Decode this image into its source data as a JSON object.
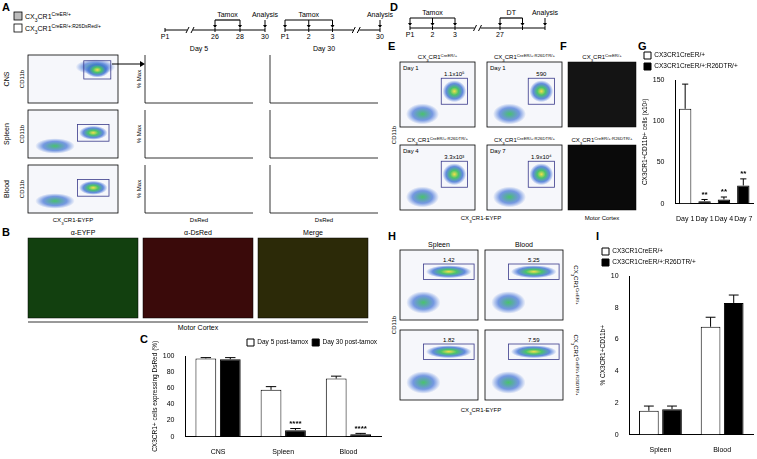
{
  "figure": {
    "A": {
      "label": "A",
      "legend": [
        {
          "name": "CX3CR1CreER/+",
          "color": "#bdbdbd"
        },
        {
          "name": "CX3CR1CreER/+:R26DsRed/+",
          "color": "#ffffff"
        }
      ],
      "timelines": [
        {
          "segments": [
            [
              {
                "label": "P1"
              }
            ],
            [
              {
                "label": "26",
                "event": "Tamox"
              },
              {
                "label": "28",
                "event": "Tamox"
              },
              {
                "label": "30",
                "event": "Analysis"
              }
            ]
          ]
        },
        {
          "segments": [
            [
              {
                "label": "P1",
                "event": "Tamox"
              },
              {
                "label": "2",
                "event": "Tamox"
              },
              {
                "label": "3",
                "event": "Tamox"
              }
            ],
            [
              {
                "label": "30",
                "event": "Analysis"
              }
            ]
          ]
        }
      ],
      "rows": [
        "CNS",
        "Spleen",
        "Blood"
      ],
      "columns": [
        "Day 5",
        "Day 30"
      ],
      "x_axis": "CX3CR1-EYFP",
      "y_axis": "CD11b",
      "hist_x_axis": "DsRed",
      "hist_y_axis": "% Max"
    },
    "B": {
      "label": "B",
      "images": [
        {
          "title": "α-EYFP",
          "color": "#12400f"
        },
        {
          "title": "α-DsRed",
          "color": "#3a0a0a"
        },
        {
          "title": "Merge",
          "color": "#2c2a08"
        }
      ],
      "caption": "Motor Cortex"
    },
    "C": {
      "label": "C"
    },
    "D": {
      "label": "D",
      "timeline": {
        "segments": [
          [
            {
              "label": "P1",
              "event": "Tamox"
            },
            {
              "label": "2",
              "event": "Tamox"
            },
            {
              "label": "3",
              "event": "Tamox"
            }
          ],
          [
            {
              "label": "27",
              "event": "DT"
            },
            {
              "label": null,
              "event": "DT"
            },
            {
              "label": null,
              "event": "Analysis"
            }
          ]
        ]
      }
    },
    "E": {
      "label": "E",
      "plots": [
        {
          "title": "CX3CR1CreER/+",
          "inset": "Day 1",
          "gate": "1.1x10⁵"
        },
        {
          "title": "CX3CR1CreER/+:R26DTR/+",
          "inset": "Day 1",
          "gate": "590"
        },
        {
          "title": "CX3CR1CreER/+:R26DTR/+",
          "inset": "Day 4",
          "gate": "3.3x10³"
        },
        {
          "title": "CX3CR1CreER/+:R26DTR/+",
          "inset": "Day 7",
          "gate": "1.9x10⁴"
        }
      ],
      "x_axis": "CX3CR1-EYFP",
      "y_axis": "CD11b"
    },
    "F": {
      "label": "F",
      "images": [
        {
          "title": "CX3CR1CreER/+",
          "color": "#141414"
        },
        {
          "title": "CX3CR1CreER/+:R26DTR/+",
          "color": "#0a0a0a"
        }
      ],
      "caption": "Motor Cortex"
    },
    "G": {
      "label": "G"
    },
    "H": {
      "label": "H",
      "columns": [
        "Spleen",
        "Blood"
      ],
      "rows": [
        "CX3CR1CreER/+",
        "CX3CR1CreER/+:R26DTR/+"
      ],
      "gates": [
        [
          "1.42",
          "5.25"
        ],
        [
          "1.82",
          "7.59"
        ]
      ],
      "x_axis": "CX3CR1-EYFP",
      "y_axis": "CD11b"
    },
    "I": {
      "label": "I"
    }
  },
  "chart_data": [
    {
      "type": "bar",
      "y_label": "CX3CR1+ cells expressing DsRed (%)",
      "categories": [
        "CNS",
        "Spleen",
        "Blood"
      ],
      "series": [
        {
          "name": "Day 5 post-tamox",
          "color": "#ffffff",
          "values": [
            97,
            58,
            72
          ],
          "errors": [
            1,
            4,
            3
          ]
        },
        {
          "name": "Day 30 post-tamox",
          "color": "#000000",
          "values": [
            96,
            8,
            3
          ],
          "errors": [
            2,
            2,
            1
          ]
        }
      ],
      "ylim": [
        0,
        100
      ],
      "yticks": [
        0,
        20,
        40,
        60,
        80,
        100
      ],
      "grid": false,
      "legend": "top-right",
      "annotations": [
        {
          "series": 1,
          "index": 1,
          "text": "****"
        },
        {
          "series": 1,
          "index": 2,
          "text": "****"
        }
      ]
    },
    {
      "type": "bar",
      "y_label": "CX3CR1+CD11b+ cells (x10²)",
      "categories": [
        "Day 1",
        "Day 1",
        "Day 4",
        "Day 7"
      ],
      "series": [
        {
          "name": "CX3CR1CreER/+",
          "color": "#ffffff",
          "values": [
            115,
            null,
            null,
            null
          ],
          "errors": [
            30,
            null,
            null,
            null
          ]
        },
        {
          "name": "CX3CR1CreER/+:R26DTR/+",
          "color": "#000000",
          "values": [
            null,
            3,
            5,
            22
          ],
          "errors": [
            null,
            2,
            3,
            8
          ]
        }
      ],
      "ylim": [
        0,
        150
      ],
      "yticks": [
        0,
        50,
        100,
        150
      ],
      "grid": false,
      "legend": "top-left",
      "annotations": [
        {
          "series": 1,
          "index": 1,
          "text": "**"
        },
        {
          "series": 1,
          "index": 2,
          "text": "**"
        },
        {
          "series": 1,
          "index": 3,
          "text": "**"
        }
      ]
    },
    {
      "type": "bar",
      "y_label": "% CX3CR1+CD11b+",
      "categories": [
        "Spleen",
        "Blood"
      ],
      "series": [
        {
          "name": "CX3CR1CreER/+",
          "color": "#ffffff",
          "values": [
            1.5,
            6.8
          ],
          "errors": [
            0.3,
            0.6
          ]
        },
        {
          "name": "CX3CR1CreER/+:R26DTR/+",
          "color": "#000000",
          "values": [
            1.6,
            8.3
          ],
          "errors": [
            0.2,
            0.5
          ]
        }
      ],
      "ylim": [
        0,
        10
      ],
      "yticks": [
        0,
        2,
        4,
        6,
        8,
        10
      ],
      "grid": false,
      "legend": "top-left",
      "annotations": []
    }
  ]
}
